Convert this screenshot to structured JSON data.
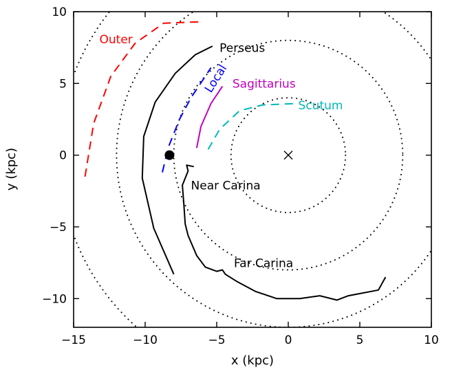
{
  "chart_data": {
    "type": "line",
    "xlabel": "x (kpc)",
    "ylabel": "y (kpc)",
    "xlim": [
      -15,
      10
    ],
    "ylim": [
      -12,
      10
    ],
    "xticks": [
      -15,
      -10,
      -5,
      0,
      5,
      10
    ],
    "yticks": [
      -10,
      -5,
      0,
      5,
      10
    ],
    "xtick_labels": [
      "−15",
      "−10",
      "−5",
      "0",
      "5",
      "10"
    ],
    "ytick_labels": [
      "−10",
      "−5",
      "0",
      "5",
      "10"
    ],
    "reference_circles": {
      "center": [
        0,
        0
      ],
      "radii": [
        4,
        8,
        12,
        16
      ],
      "style": "dotted"
    },
    "galactic_center_marker": {
      "x": 0,
      "y": 0,
      "symbol": "x"
    },
    "sun_marker": {
      "x": -8.3,
      "y": 0,
      "symbol": "filled-circle"
    },
    "series": [
      {
        "name": "Outer",
        "color": "#ff0000",
        "style": "dashed",
        "label_at": [
          -13.2,
          7.8
        ],
        "x": [
          -14.2,
          -13.6,
          -12.4,
          -10.7,
          -8.7,
          -6.0
        ],
        "y": [
          -1.5,
          2.2,
          5.5,
          7.8,
          9.2,
          9.3
        ]
      },
      {
        "name": "Perseus",
        "color": "#000000",
        "style": "solid",
        "label_at": [
          -4.8,
          7.2
        ],
        "x": [
          -8.0,
          -9.4,
          -10.2,
          -10.1,
          -9.3,
          -7.9,
          -6.5,
          -5.3
        ],
        "y": [
          -8.3,
          -5.1,
          -1.6,
          1.3,
          3.7,
          5.7,
          7.0,
          7.6
        ]
      },
      {
        "name": "Local",
        "color": "#0000ff",
        "style": "dashed",
        "label_at": [
          -5.4,
          4.3
        ],
        "label_rotation": -58,
        "x": [
          -8.8,
          -8.4,
          -7.6,
          -6.8,
          -5.4
        ],
        "y": [
          -1.2,
          0.5,
          2.5,
          4.0,
          6.1
        ]
      },
      {
        "name": "Sagittarius",
        "color": "#c000c0",
        "style": "solid",
        "label_at": [
          -3.9,
          4.7
        ],
        "x": [
          -6.4,
          -6.1,
          -5.4,
          -4.6
        ],
        "y": [
          0.5,
          2.0,
          3.6,
          4.8
        ]
      },
      {
        "name": "Scutum",
        "color": "#00b8b8",
        "style": "dashed",
        "label_at": [
          0.7,
          3.2
        ],
        "x": [
          -5.6,
          -4.8,
          -3.4,
          -1.8,
          0.6
        ],
        "y": [
          0.4,
          1.8,
          3.1,
          3.5,
          3.6
        ]
      },
      {
        "name": "Near Carina",
        "color": "#000000",
        "style": "solid",
        "label_at": [
          -6.8,
          -2.4
        ],
        "x": [
          -6.6,
          -7.1,
          -7.0,
          -7.4,
          -7.3,
          -7.2,
          -7.0
        ],
        "y": [
          -0.8,
          -0.7,
          -1.1,
          -2.1,
          -3.4,
          -4.8,
          -5.6
        ]
      },
      {
        "name": "Far Carina",
        "color": "#000000",
        "style": "solid",
        "label_at": [
          -3.8,
          -7.8
        ],
        "x": [
          -7.0,
          -6.4,
          -5.8,
          -5.0,
          -4.6,
          -4.4,
          -3.6,
          -2.3,
          -0.8,
          0.8,
          2.2,
          3.4,
          4.2,
          6.3,
          6.8
        ],
        "y": [
          -5.6,
          -7.0,
          -7.8,
          -8.1,
          -8.0,
          -8.3,
          -8.8,
          -9.5,
          -10.0,
          -10.0,
          -9.8,
          -10.1,
          -9.8,
          -9.4,
          -8.5
        ]
      }
    ]
  }
}
